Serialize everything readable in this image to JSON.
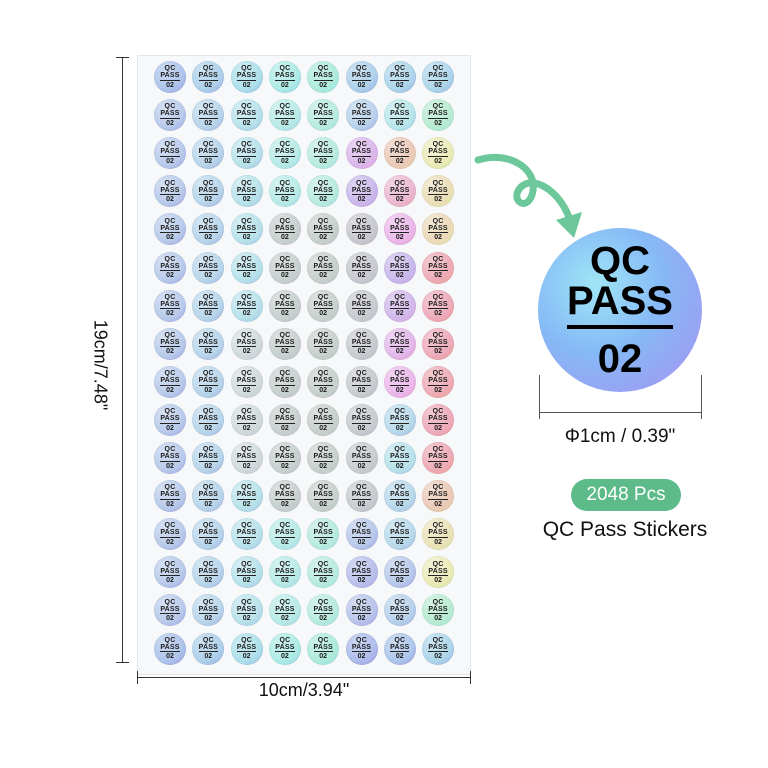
{
  "sticker": {
    "line1": "QC",
    "line2": "PASS",
    "line3": "02"
  },
  "sheet": {
    "rows": 16,
    "columns": 8
  },
  "dimensions": {
    "height": "19cm/7.48\"",
    "width": "10cm/3.94\"",
    "diameter": "Φ1cm / 0.39\""
  },
  "quantity_badge": "2048 Pcs",
  "product_name": "QC Pass Stickers",
  "colors": {
    "badge": "#5dbb8a",
    "arrow": "#6cc89a"
  }
}
